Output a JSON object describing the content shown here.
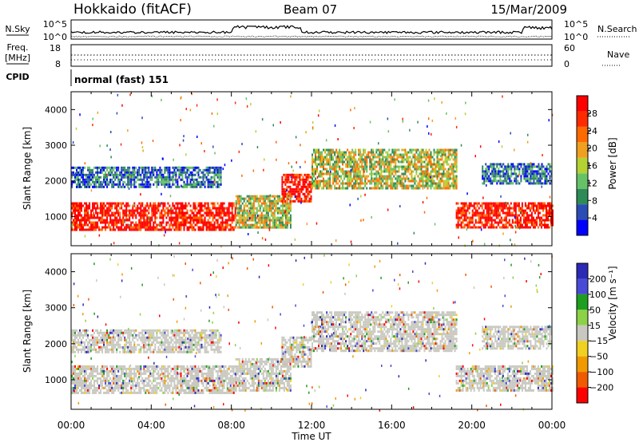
{
  "header": {
    "station": "Hokkaido (fitACF)",
    "beam": "Beam 07",
    "date": "15/Mar/2009"
  },
  "noise_panel": {
    "left_label": "N.Sky",
    "right_label": "N.Search",
    "left_ticks": [
      "10^5",
      "10^0"
    ],
    "right_ticks": [
      "10^5",
      "10^0"
    ]
  },
  "freq_panel": {
    "left_label_line1": "Freq.",
    "left_label_line2": "[MHz]",
    "right_label": "Nave",
    "left_ticks": [
      "18",
      "8"
    ],
    "right_ticks": [
      "60",
      "0"
    ]
  },
  "cpid_panel": {
    "label": "CPID",
    "text": "normal (fast) 151"
  },
  "colors": {
    "power": [
      "#0000ff",
      "#2a4db4",
      "#2e8b57",
      "#66c266",
      "#b4d232",
      "#f0a020",
      "#ff6a00",
      "#ff2a00",
      "#ff0000"
    ],
    "velocity": [
      "#2a2ab4",
      "#4a4ad8",
      "#1e9e1e",
      "#8cd246",
      "#c8c8c0",
      "#f0d020",
      "#f09a00",
      "#f05a00",
      "#ff0000"
    ]
  },
  "chart_data": [
    {
      "type": "heatmap",
      "title": "Power",
      "ylabel": "Slant Range [km]",
      "xlabel": "",
      "x_ticks": [
        "00:00",
        "04:00",
        "08:00",
        "12:00",
        "16:00",
        "20:00",
        "00:00"
      ],
      "y_ticks": [
        1000,
        2000,
        3000,
        4000
      ],
      "ylim": [
        180,
        4500
      ],
      "colorbar": {
        "label": "Power [dB]",
        "ticks": [
          4,
          8,
          12,
          16,
          20,
          24,
          28
        ],
        "range": [
          0,
          32
        ]
      },
      "echo_bands": [
        {
          "t_start": 0,
          "t_end": 8.2,
          "r_low": 650,
          "r_high": 1400,
          "level": "strong"
        },
        {
          "t_start": 8.2,
          "t_end": 11,
          "r_low": 700,
          "r_high": 1600,
          "level": "medium"
        },
        {
          "t_start": 0,
          "t_end": 7.5,
          "r_low": 1800,
          "r_high": 2400,
          "level": "weak"
        },
        {
          "t_start": 10.5,
          "t_end": 12,
          "r_low": 1400,
          "r_high": 2200,
          "level": "strong"
        },
        {
          "t_start": 12,
          "t_end": 19.2,
          "r_low": 1800,
          "r_high": 2900,
          "level": "medium"
        },
        {
          "t_start": 19.2,
          "t_end": 24,
          "r_low": 700,
          "r_high": 1400,
          "level": "strong"
        },
        {
          "t_start": 20.5,
          "t_end": 24,
          "r_low": 1900,
          "r_high": 2500,
          "level": "weak"
        }
      ]
    },
    {
      "type": "heatmap",
      "title": "Velocity",
      "ylabel": "Slant Range [km]",
      "xlabel": "Time UT",
      "x_ticks": [
        "00:00",
        "04:00",
        "08:00",
        "12:00",
        "16:00",
        "20:00",
        "00:00"
      ],
      "y_ticks": [
        1000,
        2000,
        3000,
        4000
      ],
      "ylim": [
        180,
        4500
      ],
      "colorbar": {
        "label": "Velocity [m s⁻¹]",
        "ticks": [
          "200",
          "100",
          "50",
          "15",
          "−15",
          "−50",
          "−100",
          "−200"
        ]
      },
      "dominant_velocity": "near zero (grey, −15 to 15 m s⁻¹)"
    }
  ]
}
